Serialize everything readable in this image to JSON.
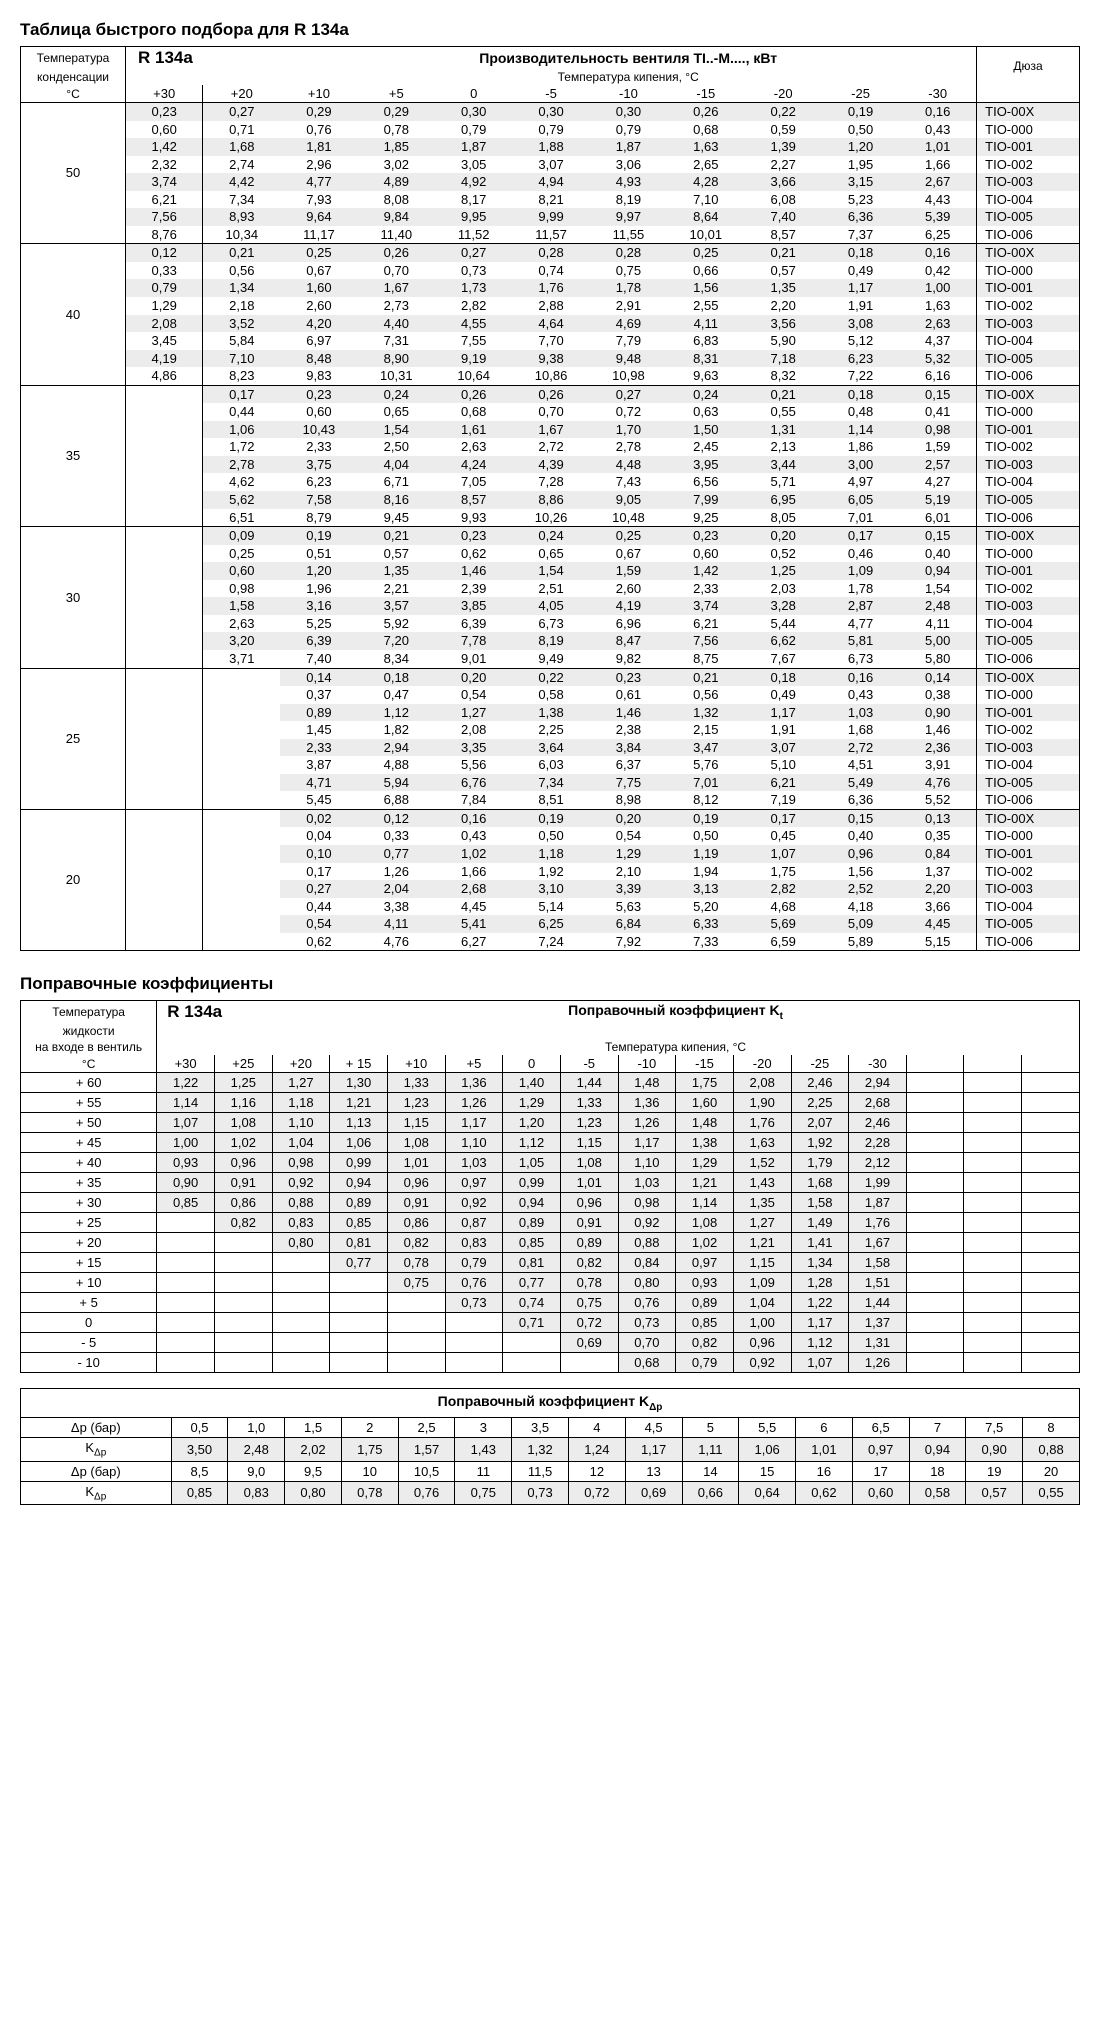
{
  "title1": "Таблица быстрого подбора для R 134a",
  "title2": "Поправочные коэффициенты",
  "refrig": "R 134a",
  "perfTitle": "Производительность вентиля TI..-M...., кВт",
  "perfSub": "Температура кипения, °C",
  "condHdr1": "Температура",
  "condHdr2": "конденсации",
  "condHdr3": "°C",
  "duza": "Дюза",
  "liqHdr1": "Температура",
  "liqHdr2": "жидкости",
  "liqHdr3": "на входе в вентиль",
  "ktTitle": "Поправочный коэффициент K",
  "ktSub1": "t",
  "kdpTitle": "Поправочный коэффициент K",
  "kdpSub": "Δp",
  "dpBar": "Δp (бар)",
  "kdp": "K",
  "t1_cols": [
    "+30",
    "+20",
    "+10",
    "+5",
    "0",
    "-5",
    "-10",
    "-15",
    "-20",
    "-25",
    "-30"
  ],
  "t1_temps": [
    "50",
    "40",
    "35",
    "30",
    "25",
    "20"
  ],
  "t1_duza": [
    "TIO-00X",
    "TIO-000",
    "TIO-001",
    "TIO-002",
    "TIO-003",
    "TIO-004",
    "TIO-005",
    "TIO-006"
  ],
  "t1": {
    "50": [
      [
        "0,23",
        "0,27",
        "0,29",
        "0,29",
        "0,30",
        "0,30",
        "0,30",
        "0,26",
        "0,22",
        "0,19",
        "0,16"
      ],
      [
        "0,60",
        "0,71",
        "0,76",
        "0,78",
        "0,79",
        "0,79",
        "0,79",
        "0,68",
        "0,59",
        "0,50",
        "0,43"
      ],
      [
        "1,42",
        "1,68",
        "1,81",
        "1,85",
        "1,87",
        "1,88",
        "1,87",
        "1,63",
        "1,39",
        "1,20",
        "1,01"
      ],
      [
        "2,32",
        "2,74",
        "2,96",
        "3,02",
        "3,05",
        "3,07",
        "3,06",
        "2,65",
        "2,27",
        "1,95",
        "1,66"
      ],
      [
        "3,74",
        "4,42",
        "4,77",
        "4,89",
        "4,92",
        "4,94",
        "4,93",
        "4,28",
        "3,66",
        "3,15",
        "2,67"
      ],
      [
        "6,21",
        "7,34",
        "7,93",
        "8,08",
        "8,17",
        "8,21",
        "8,19",
        "7,10",
        "6,08",
        "5,23",
        "4,43"
      ],
      [
        "7,56",
        "8,93",
        "9,64",
        "9,84",
        "9,95",
        "9,99",
        "9,97",
        "8,64",
        "7,40",
        "6,36",
        "5,39"
      ],
      [
        "8,76",
        "10,34",
        "11,17",
        "11,40",
        "11,52",
        "11,57",
        "11,55",
        "10,01",
        "8,57",
        "7,37",
        "6,25"
      ]
    ],
    "40": [
      [
        "0,12",
        "0,21",
        "0,25",
        "0,26",
        "0,27",
        "0,28",
        "0,28",
        "0,25",
        "0,21",
        "0,18",
        "0,16"
      ],
      [
        "0,33",
        "0,56",
        "0,67",
        "0,70",
        "0,73",
        "0,74",
        "0,75",
        "0,66",
        "0,57",
        "0,49",
        "0,42"
      ],
      [
        "0,79",
        "1,34",
        "1,60",
        "1,67",
        "1,73",
        "1,76",
        "1,78",
        "1,56",
        "1,35",
        "1,17",
        "1,00"
      ],
      [
        "1,29",
        "2,18",
        "2,60",
        "2,73",
        "2,82",
        "2,88",
        "2,91",
        "2,55",
        "2,20",
        "1,91",
        "1,63"
      ],
      [
        "2,08",
        "3,52",
        "4,20",
        "4,40",
        "4,55",
        "4,64",
        "4,69",
        "4,11",
        "3,56",
        "3,08",
        "2,63"
      ],
      [
        "3,45",
        "5,84",
        "6,97",
        "7,31",
        "7,55",
        "7,70",
        "7,79",
        "6,83",
        "5,90",
        "5,12",
        "4,37"
      ],
      [
        "4,19",
        "7,10",
        "8,48",
        "8,90",
        "9,19",
        "9,38",
        "9,48",
        "8,31",
        "7,18",
        "6,23",
        "5,32"
      ],
      [
        "4,86",
        "8,23",
        "9,83",
        "10,31",
        "10,64",
        "10,86",
        "10,98",
        "9,63",
        "8,32",
        "7,22",
        "6,16"
      ]
    ],
    "35": [
      [
        "",
        "0,17",
        "0,23",
        "0,24",
        "0,26",
        "0,26",
        "0,27",
        "0,24",
        "0,21",
        "0,18",
        "0,15"
      ],
      [
        "",
        "0,44",
        "0,60",
        "0,65",
        "0,68",
        "0,70",
        "0,72",
        "0,63",
        "0,55",
        "0,48",
        "0,41"
      ],
      [
        "",
        "1,06",
        "10,43",
        "1,54",
        "1,61",
        "1,67",
        "1,70",
        "1,50",
        "1,31",
        "1,14",
        "0,98"
      ],
      [
        "",
        "1,72",
        "2,33",
        "2,50",
        "2,63",
        "2,72",
        "2,78",
        "2,45",
        "2,13",
        "1,86",
        "1,59"
      ],
      [
        "",
        "2,78",
        "3,75",
        "4,04",
        "4,24",
        "4,39",
        "4,48",
        "3,95",
        "3,44",
        "3,00",
        "2,57"
      ],
      [
        "",
        "4,62",
        "6,23",
        "6,71",
        "7,05",
        "7,28",
        "7,43",
        "6,56",
        "5,71",
        "4,97",
        "4,27"
      ],
      [
        "",
        "5,62",
        "7,58",
        "8,16",
        "8,57",
        "8,86",
        "9,05",
        "7,99",
        "6,95",
        "6,05",
        "5,19"
      ],
      [
        "",
        "6,51",
        "8,79",
        "9,45",
        "9,93",
        "10,26",
        "10,48",
        "9,25",
        "8,05",
        "7,01",
        "6,01"
      ]
    ],
    "30": [
      [
        "",
        "0,09",
        "0,19",
        "0,21",
        "0,23",
        "0,24",
        "0,25",
        "0,23",
        "0,20",
        "0,17",
        "0,15"
      ],
      [
        "",
        "0,25",
        "0,51",
        "0,57",
        "0,62",
        "0,65",
        "0,67",
        "0,60",
        "0,52",
        "0,46",
        "0,40"
      ],
      [
        "",
        "0,60",
        "1,20",
        "1,35",
        "1,46",
        "1,54",
        "1,59",
        "1,42",
        "1,25",
        "1,09",
        "0,94"
      ],
      [
        "",
        "0,98",
        "1,96",
        "2,21",
        "2,39",
        "2,51",
        "2,60",
        "2,33",
        "2,03",
        "1,78",
        "1,54"
      ],
      [
        "",
        "1,58",
        "3,16",
        "3,57",
        "3,85",
        "4,05",
        "4,19",
        "3,74",
        "3,28",
        "2,87",
        "2,48"
      ],
      [
        "",
        "2,63",
        "5,25",
        "5,92",
        "6,39",
        "6,73",
        "6,96",
        "6,21",
        "5,44",
        "4,77",
        "4,11"
      ],
      [
        "",
        "3,20",
        "6,39",
        "7,20",
        "7,78",
        "8,19",
        "8,47",
        "7,56",
        "6,62",
        "5,81",
        "5,00"
      ],
      [
        "",
        "3,71",
        "7,40",
        "8,34",
        "9,01",
        "9,49",
        "9,82",
        "8,75",
        "7,67",
        "6,73",
        "5,80"
      ]
    ],
    "25": [
      [
        "",
        "",
        "0,14",
        "0,18",
        "0,20",
        "0,22",
        "0,23",
        "0,21",
        "0,18",
        "0,16",
        "0,14"
      ],
      [
        "",
        "",
        "0,37",
        "0,47",
        "0,54",
        "0,58",
        "0,61",
        "0,56",
        "0,49",
        "0,43",
        "0,38"
      ],
      [
        "",
        "",
        "0,89",
        "1,12",
        "1,27",
        "1,38",
        "1,46",
        "1,32",
        "1,17",
        "1,03",
        "0,90"
      ],
      [
        "",
        "",
        "1,45",
        "1,82",
        "2,08",
        "2,25",
        "2,38",
        "2,15",
        "1,91",
        "1,68",
        "1,46"
      ],
      [
        "",
        "",
        "2,33",
        "2,94",
        "3,35",
        "3,64",
        "3,84",
        "3,47",
        "3,07",
        "2,72",
        "2,36"
      ],
      [
        "",
        "",
        "3,87",
        "4,88",
        "5,56",
        "6,03",
        "6,37",
        "5,76",
        "5,10",
        "4,51",
        "3,91"
      ],
      [
        "",
        "",
        "4,71",
        "5,94",
        "6,76",
        "7,34",
        "7,75",
        "7,01",
        "6,21",
        "5,49",
        "4,76"
      ],
      [
        "",
        "",
        "5,45",
        "6,88",
        "7,84",
        "8,51",
        "8,98",
        "8,12",
        "7,19",
        "6,36",
        "5,52"
      ]
    ],
    "20": [
      [
        "",
        "",
        "0,02",
        "0,12",
        "0,16",
        "0,19",
        "0,20",
        "0,19",
        "0,17",
        "0,15",
        "0,13"
      ],
      [
        "",
        "",
        "0,04",
        "0,33",
        "0,43",
        "0,50",
        "0,54",
        "0,50",
        "0,45",
        "0,40",
        "0,35"
      ],
      [
        "",
        "",
        "0,10",
        "0,77",
        "1,02",
        "1,18",
        "1,29",
        "1,19",
        "1,07",
        "0,96",
        "0,84"
      ],
      [
        "",
        "",
        "0,17",
        "1,26",
        "1,66",
        "1,92",
        "2,10",
        "1,94",
        "1,75",
        "1,56",
        "1,37"
      ],
      [
        "",
        "",
        "0,27",
        "2,04",
        "2,68",
        "3,10",
        "3,39",
        "3,13",
        "2,82",
        "2,52",
        "2,20"
      ],
      [
        "",
        "",
        "0,44",
        "3,38",
        "4,45",
        "5,14",
        "5,63",
        "5,20",
        "4,68",
        "4,18",
        "3,66"
      ],
      [
        "",
        "",
        "0,54",
        "4,11",
        "5,41",
        "6,25",
        "6,84",
        "6,33",
        "5,69",
        "5,09",
        "4,45"
      ],
      [
        "",
        "",
        "0,62",
        "4,76",
        "6,27",
        "7,24",
        "7,92",
        "7,33",
        "6,59",
        "5,89",
        "5,15"
      ]
    ]
  },
  "t2_cols": [
    "+30",
    "+25",
    "+20",
    "+ 15",
    "+10",
    "+5",
    "0",
    "-5",
    "-10",
    "-15",
    "-20",
    "-25",
    "-30"
  ],
  "t2_rows": [
    {
      "t": "+ 60",
      "v": [
        "1,22",
        "1,25",
        "1,27",
        "1,30",
        "1,33",
        "1,36",
        "1,40",
        "1,44",
        "1,48",
        "1,75",
        "2,08",
        "2,46",
        "2,94"
      ]
    },
    {
      "t": "+ 55",
      "v": [
        "1,14",
        "1,16",
        "1,18",
        "1,21",
        "1,23",
        "1,26",
        "1,29",
        "1,33",
        "1,36",
        "1,60",
        "1,90",
        "2,25",
        "2,68"
      ]
    },
    {
      "t": "+ 50",
      "v": [
        "1,07",
        "1,08",
        "1,10",
        "1,13",
        "1,15",
        "1,17",
        "1,20",
        "1,23",
        "1,26",
        "1,48",
        "1,76",
        "2,07",
        "2,46"
      ]
    },
    {
      "t": "+ 45",
      "v": [
        "1,00",
        "1,02",
        "1,04",
        "1,06",
        "1,08",
        "1,10",
        "1,12",
        "1,15",
        "1,17",
        "1,38",
        "1,63",
        "1,92",
        "2,28"
      ]
    },
    {
      "t": "+ 40",
      "v": [
        "0,93",
        "0,96",
        "0,98",
        "0,99",
        "1,01",
        "1,03",
        "1,05",
        "1,08",
        "1,10",
        "1,29",
        "1,52",
        "1,79",
        "2,12"
      ]
    },
    {
      "t": "+ 35",
      "v": [
        "0,90",
        "0,91",
        "0,92",
        "0,94",
        "0,96",
        "0,97",
        "0,99",
        "1,01",
        "1,03",
        "1,21",
        "1,43",
        "1,68",
        "1,99"
      ]
    },
    {
      "t": "+ 30",
      "v": [
        "0,85",
        "0,86",
        "0,88",
        "0,89",
        "0,91",
        "0,92",
        "0,94",
        "0,96",
        "0,98",
        "1,14",
        "1,35",
        "1,58",
        "1,87"
      ]
    },
    {
      "t": "+ 25",
      "v": [
        "",
        "0,82",
        "0,83",
        "0,85",
        "0,86",
        "0,87",
        "0,89",
        "0,91",
        "0,92",
        "1,08",
        "1,27",
        "1,49",
        "1,76"
      ]
    },
    {
      "t": "+ 20",
      "v": [
        "",
        "",
        "0,80",
        "0,81",
        "0,82",
        "0,83",
        "0,85",
        "0,89",
        "0,88",
        "1,02",
        "1,21",
        "1,41",
        "1,67"
      ]
    },
    {
      "t": "+ 15",
      "v": [
        "",
        "",
        "",
        "0,77",
        "0,78",
        "0,79",
        "0,81",
        "0,82",
        "0,84",
        "0,97",
        "1,15",
        "1,34",
        "1,58"
      ]
    },
    {
      "t": "+ 10",
      "v": [
        "",
        "",
        "",
        "",
        "0,75",
        "0,76",
        "0,77",
        "0,78",
        "0,80",
        "0,93",
        "1,09",
        "1,28",
        "1,51"
      ]
    },
    {
      "t": "+ 5",
      "v": [
        "",
        "",
        "",
        "",
        "",
        "0,73",
        "0,74",
        "0,75",
        "0,76",
        "0,89",
        "1,04",
        "1,22",
        "1,44"
      ]
    },
    {
      "t": "0",
      "v": [
        "",
        "",
        "",
        "",
        "",
        "",
        "0,71",
        "0,72",
        "0,73",
        "0,85",
        "1,00",
        "1,17",
        "1,37"
      ]
    },
    {
      "t": "- 5",
      "v": [
        "",
        "",
        "",
        "",
        "",
        "",
        "",
        "0,69",
        "0,70",
        "0,82",
        "0,96",
        "1,12",
        "1,31"
      ]
    },
    {
      "t": "- 10",
      "v": [
        "",
        "",
        "",
        "",
        "",
        "",
        "",
        "",
        "0,68",
        "0,79",
        "0,92",
        "1,07",
        "1,26"
      ]
    }
  ],
  "t3a_dp": [
    "0,5",
    "1,0",
    "1,5",
    "2",
    "2,5",
    "3",
    "3,5",
    "4",
    "4,5",
    "5",
    "5,5",
    "6",
    "6,5",
    "7",
    "7,5",
    "8"
  ],
  "t3a_k": [
    "3,50",
    "2,48",
    "2,02",
    "1,75",
    "1,57",
    "1,43",
    "1,32",
    "1,24",
    "1,17",
    "1,11",
    "1,06",
    "1,01",
    "0,97",
    "0,94",
    "0,90",
    "0,88"
  ],
  "t3b_dp": [
    "8,5",
    "9,0",
    "9,5",
    "10",
    "10,5",
    "11",
    "11,5",
    "12",
    "13",
    "14",
    "15",
    "16",
    "17",
    "18",
    "19",
    "20"
  ],
  "t3b_k": [
    "0,85",
    "0,83",
    "0,80",
    "0,78",
    "0,76",
    "0,75",
    "0,73",
    "0,72",
    "0,69",
    "0,66",
    "0,64",
    "0,62",
    "0,60",
    "0,58",
    "0,57",
    "0,55"
  ]
}
